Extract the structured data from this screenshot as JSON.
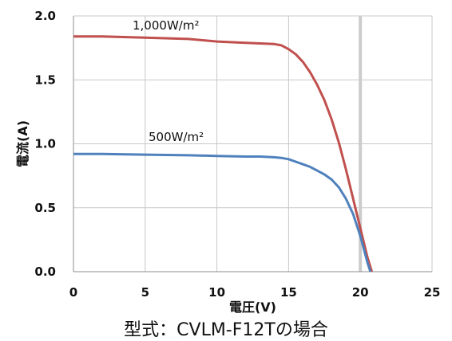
{
  "caption": "型式：CVLM-F12Tの場合",
  "chart_data": {
    "type": "line",
    "title": "",
    "xlabel": "電圧(V)",
    "ylabel": "電流(A)",
    "xlim": [
      0,
      25
    ],
    "ylim": [
      0,
      2.0
    ],
    "xticks": [
      0,
      5,
      10,
      15,
      20,
      25
    ],
    "yticks": [
      0.0,
      0.5,
      1.0,
      1.5,
      2.0
    ],
    "xtick_labels": [
      "0",
      "5",
      "10",
      "15",
      "20",
      "25"
    ],
    "ytick_labels": [
      "0.0",
      "0.5",
      "1.0",
      "1.5",
      "2.0"
    ],
    "grid": true,
    "series": [
      {
        "name": "1,000W/m²",
        "color": "#c0504d",
        "x": [
          0,
          2,
          5,
          8,
          10,
          12,
          13,
          14,
          14.5,
          15,
          15.5,
          16,
          16.5,
          17,
          17.5,
          18,
          18.5,
          19,
          19.5,
          20,
          20.5,
          20.8
        ],
        "y": [
          1.84,
          1.84,
          1.83,
          1.82,
          1.8,
          1.79,
          1.785,
          1.78,
          1.77,
          1.74,
          1.7,
          1.64,
          1.56,
          1.46,
          1.34,
          1.19,
          1.01,
          0.8,
          0.57,
          0.34,
          0.11,
          0.0
        ]
      },
      {
        "name": "500W/m²",
        "color": "#4f81bd",
        "x": [
          0,
          2,
          5,
          8,
          10,
          12,
          13,
          14,
          14.5,
          15,
          15.5,
          16,
          16.5,
          17,
          17.5,
          18,
          18.5,
          19,
          19.5,
          20,
          20.5,
          20.7
        ],
        "y": [
          0.92,
          0.92,
          0.915,
          0.91,
          0.905,
          0.9,
          0.9,
          0.895,
          0.89,
          0.88,
          0.86,
          0.84,
          0.82,
          0.79,
          0.76,
          0.72,
          0.66,
          0.57,
          0.45,
          0.28,
          0.07,
          0.0
        ]
      }
    ],
    "vline": {
      "x": 20.0,
      "color": "#cccccc"
    }
  }
}
